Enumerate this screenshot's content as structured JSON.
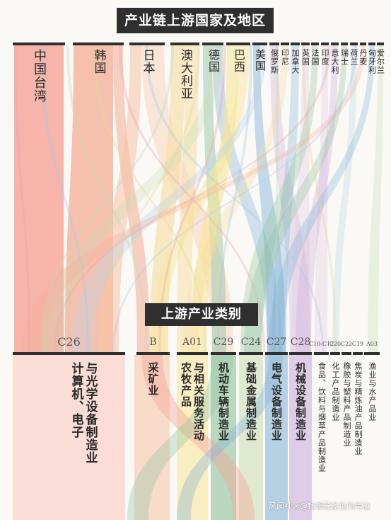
{
  "top_title": "产业链上游国家及地区",
  "mid_title": "上游产业类别",
  "watermark": "风闻社区@畅想蔚蓝色的岸边",
  "colors": {
    "background": "#fbf9f6",
    "bar": "#2f2f2f",
    "taiwan": "#f5a89c",
    "korea": "#f5b29c",
    "japan": "#f7c2a4",
    "australia": "#f7dca0",
    "germany": "#c7dcb1",
    "brazil": "#f6e596",
    "usa": "#b8d3e6",
    "others": "#dfc7e2",
    "flow_green": "#8fc29d",
    "flow_blue": "#7fb0d6",
    "flow_purple": "#c9a8d8"
  },
  "countries": [
    {
      "name": "中国台湾",
      "color": "#f5a89c"
    },
    {
      "name": "韩国",
      "color": "#f5b29c"
    },
    {
      "name": "日本",
      "color": "#f7c2a4"
    },
    {
      "name": "澳大利亚",
      "color": "#f7dca0"
    },
    {
      "name": "德国",
      "color": "#c7dcb1"
    },
    {
      "name": "巴西",
      "color": "#f6e596"
    },
    {
      "name": "美国",
      "color": "#b8d3e6"
    },
    {
      "name": "俄罗斯",
      "color": "#e6c7d9"
    },
    {
      "name": "印尼",
      "color": "#d9c7e6"
    },
    {
      "name": "加拿大",
      "color": "#c7d2e6"
    },
    {
      "name": "英国",
      "color": "#d2e6c7"
    },
    {
      "name": "法国",
      "color": "#e6dcc7"
    },
    {
      "name": "印度",
      "color": "#c7e6e0"
    },
    {
      "name": "意大利",
      "color": "#e6c7c7"
    },
    {
      "name": "瑞士",
      "color": "#dfe6c7"
    },
    {
      "name": "荷兰",
      "color": "#c7cfe6"
    },
    {
      "name": "丹麦",
      "color": "#e6d7c7"
    },
    {
      "name": "匈牙利",
      "color": "#d7c7e6"
    },
    {
      "name": "爱尔兰",
      "color": "#c7e6cf"
    }
  ],
  "industries": [
    {
      "code": "C26",
      "name": "计算机、电子与光学设备制造业",
      "lines": [
        "计算机、电子",
        "与光学设备制造业"
      ],
      "color": "#f5a89c"
    },
    {
      "code": "B",
      "name": "采矿业",
      "lines": [
        "采矿业"
      ],
      "color": "#f7c2a4"
    },
    {
      "code": "A01",
      "name": "农牧产品与相关服务活动",
      "lines": [
        "农牧产品",
        "与相关服务活动"
      ],
      "color": "#f6e596"
    },
    {
      "code": "C29",
      "name": "机动车辆制造业",
      "lines": [
        "机动车辆制造业"
      ],
      "color": "#8fc29d"
    },
    {
      "code": "C24",
      "name": "基础金属制造业",
      "lines": [
        "基础金属制造业"
      ],
      "color": "#c7dcb1"
    },
    {
      "code": "C27",
      "name": "电气设备制造业",
      "lines": [
        "电气设备制造业"
      ],
      "color": "#7fb0d6"
    },
    {
      "code": "C28",
      "name": "机械设备制造业",
      "lines": [
        "机械设备制造业"
      ],
      "color": "#c9a8d8"
    },
    {
      "code": "C10-C12",
      "name": "食品、饮料与烟草产品制造业",
      "lines": [
        "食品、饮料与烟草产品制造业"
      ],
      "color": "#e6d7c7"
    },
    {
      "code": "C20",
      "name": "化工产品制造业",
      "lines": [
        "化工产品制造业"
      ],
      "color": "#d2e6c7"
    },
    {
      "code": "C22",
      "name": "橡胶与塑料产品制造业",
      "lines": [
        "橡胶与塑料产品制造业"
      ],
      "color": "#c7e6e0"
    },
    {
      "code": "C19",
      "name": "焦炭与精炼油产品制造业",
      "lines": [
        "焦炭与精炼油产品制造业"
      ],
      "color": "#e6c7d9"
    },
    {
      "code": "A03",
      "name": "渔业与水产品业",
      "lines": [
        "渔业与水产品业"
      ],
      "color": "#c7d2e6"
    }
  ]
}
